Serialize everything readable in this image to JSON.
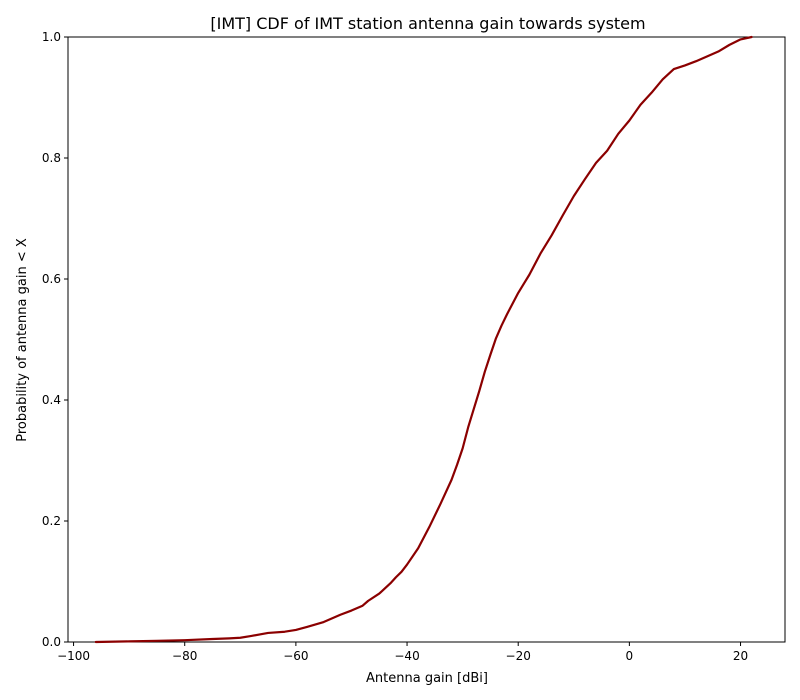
{
  "chart_data": {
    "type": "line",
    "title": "[IMT] CDF of IMT station antenna gain towards system",
    "xlabel": "Antenna gain [dBi]",
    "ylabel": "Probability of antenna gain < X",
    "xlim": [
      -101,
      28
    ],
    "ylim": [
      0,
      1
    ],
    "xticks": [
      -100,
      -80,
      -60,
      -40,
      -20,
      0,
      20
    ],
    "xtick_labels": [
      "−100",
      "−80",
      "−60",
      "−40",
      "−20",
      "0",
      "20"
    ],
    "yticks": [
      0.0,
      0.2,
      0.4,
      0.6,
      0.8,
      1.0
    ],
    "ytick_labels": [
      "0.0",
      "0.2",
      "0.4",
      "0.6",
      "0.8",
      "1.0"
    ],
    "grid": false,
    "legend": "none",
    "series": [
      {
        "color": "#8b0000",
        "x": [
          -96,
          -90,
          -85,
          -80,
          -75,
          -72,
          -70,
          -68,
          -65,
          -62,
          -60,
          -58,
          -55,
          -52,
          -50,
          -48,
          -47,
          -45,
          -43,
          -42,
          -41,
          -40,
          -38,
          -36,
          -34,
          -32,
          -31,
          -30,
          -29,
          -28,
          -27,
          -26,
          -25,
          -24,
          -23,
          -22,
          -20,
          -19,
          -18,
          -16,
          -14,
          -12,
          -10,
          -8,
          -6,
          -4,
          -2,
          0,
          2,
          4,
          6,
          8,
          10,
          12,
          14,
          16,
          18,
          20,
          22
        ],
        "y": [
          0.0,
          0.001,
          0.002,
          0.003,
          0.005,
          0.006,
          0.007,
          0.01,
          0.015,
          0.017,
          0.02,
          0.025,
          0.033,
          0.045,
          0.052,
          0.06,
          0.068,
          0.08,
          0.097,
          0.107,
          0.116,
          0.128,
          0.155,
          0.19,
          0.228,
          0.268,
          0.293,
          0.32,
          0.355,
          0.385,
          0.415,
          0.447,
          0.475,
          0.502,
          0.523,
          0.542,
          0.577,
          0.592,
          0.607,
          0.642,
          0.672,
          0.705,
          0.737,
          0.765,
          0.792,
          0.812,
          0.84,
          0.862,
          0.888,
          0.908,
          0.93,
          0.947,
          0.953,
          0.96,
          0.968,
          0.976,
          0.987,
          0.996,
          1.0
        ]
      }
    ]
  }
}
